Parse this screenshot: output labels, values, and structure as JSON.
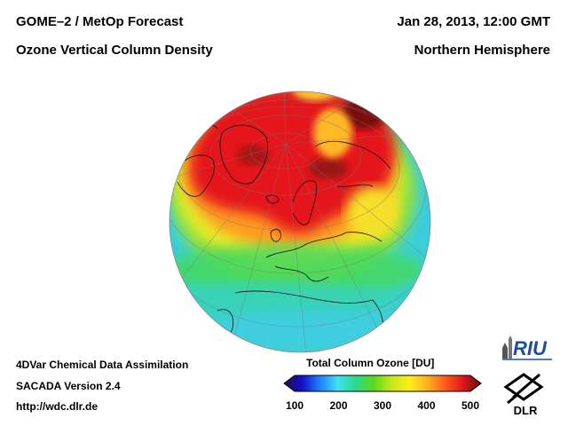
{
  "header": {
    "product": "GOME–2 / MetOp Forecast",
    "quantity": "Ozone Vertical Column Density",
    "datetime": "Jan 28, 2013, 12:00 GMT",
    "region": "Northern Hemisphere"
  },
  "footer": {
    "method": "4DVar Chemical Data Assimilation",
    "version": "SACADA Version 2.4",
    "url": "http://wdc.dlr.de"
  },
  "colorbar": {
    "title": "Total Column Ozone [DU]",
    "ticks": [
      "100",
      "200",
      "300",
      "400",
      "500"
    ],
    "range": [
      100,
      500
    ],
    "colors": [
      "#2a0a4a",
      "#1010c8",
      "#1f7fff",
      "#3fe0f0",
      "#2cd98a",
      "#5ad81f",
      "#c8e81a",
      "#ffee1a",
      "#ffb020",
      "#ff5a1a",
      "#e0141c",
      "#5a1010"
    ]
  },
  "logos": {
    "riu": "RIU",
    "dlr": "DLR"
  },
  "map": {
    "projection": "orthographic",
    "ocean_background": "#3cc8e8"
  }
}
